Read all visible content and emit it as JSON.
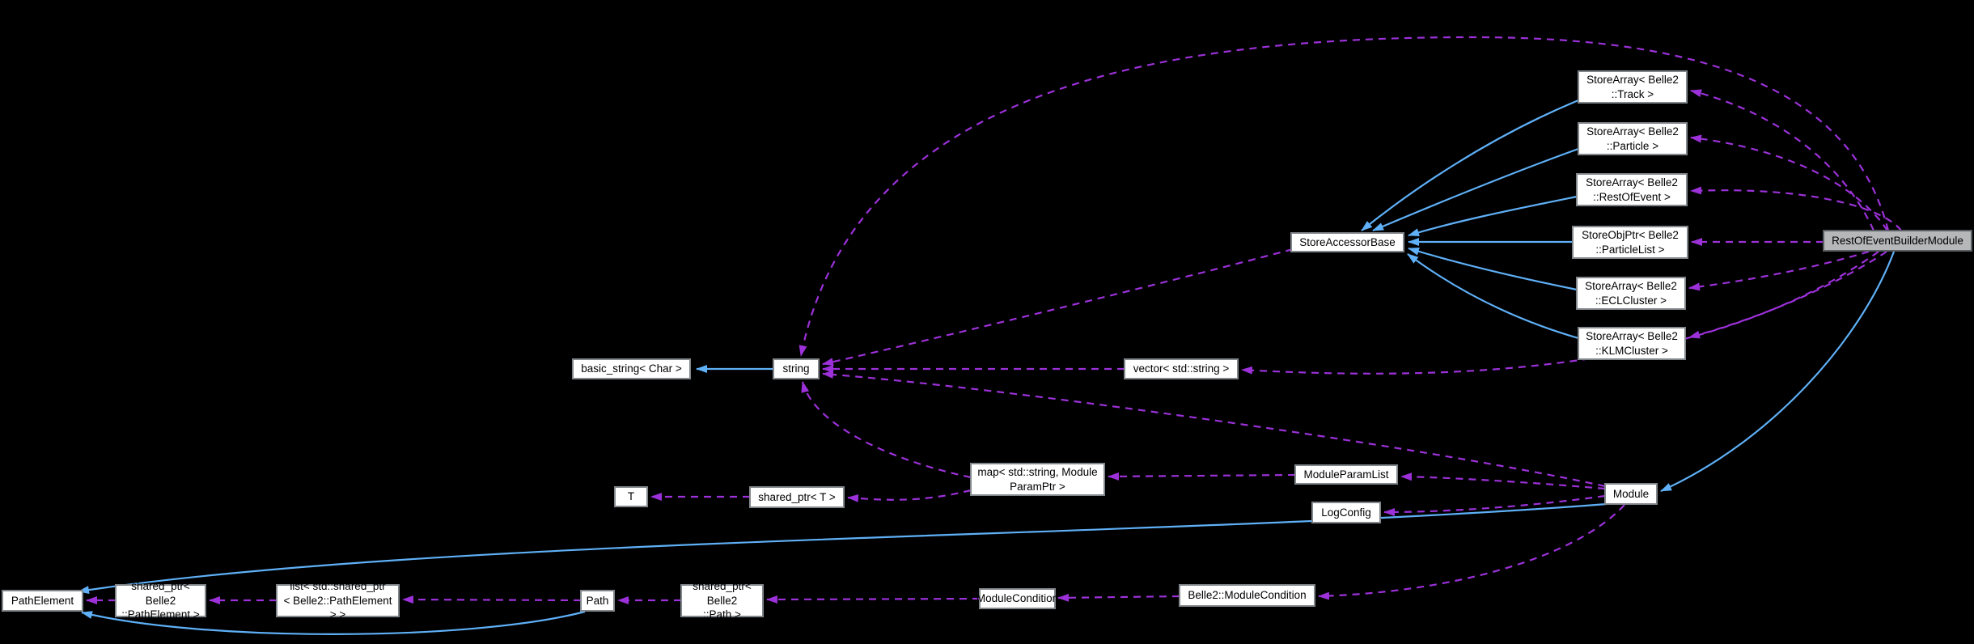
{
  "diagram": {
    "type": "doxygen-collaboration-graph",
    "background_color": "#000000",
    "colors": {
      "inheritance_edge": "#5fb0f7",
      "usage_edge": "#9c31d9",
      "node_fill": "#ffffff",
      "node_border": "#82878c",
      "current_node_fill": "#b5b7b8",
      "current_node_border": "#5a5f63",
      "label_color": "#000000"
    },
    "nodes": [
      {
        "id": "reob",
        "label": "RestOfEventBuilderModule",
        "current": true
      },
      {
        "id": "sa_track",
        "label": "StoreArray< Belle2\n::Track >",
        "current": false
      },
      {
        "id": "sa_particle",
        "label": "StoreArray< Belle2\n::Particle >",
        "current": false
      },
      {
        "id": "sa_roe",
        "label": "StoreArray< Belle2\n::RestOfEvent >",
        "current": false
      },
      {
        "id": "sop_particle_list",
        "label": "StoreObjPtr< Belle2\n::ParticleList >",
        "current": false
      },
      {
        "id": "sa_ecl",
        "label": "StoreArray< Belle2\n::ECLCluster >",
        "current": false
      },
      {
        "id": "sa_klm",
        "label": "StoreArray< Belle2\n::KLMCluster >",
        "current": false
      },
      {
        "id": "store_accessor",
        "label": "StoreAccessorBase",
        "current": false
      },
      {
        "id": "basic_string",
        "label": "basic_string< Char >",
        "current": false
      },
      {
        "id": "string",
        "label": "string",
        "current": false
      },
      {
        "id": "vec_string",
        "label": "vector< std::string >",
        "current": false
      },
      {
        "id": "t",
        "label": "T",
        "current": false
      },
      {
        "id": "sp_t",
        "label": "shared_ptr< T >",
        "current": false
      },
      {
        "id": "map",
        "label": "map< std::string, Module\nParamPtr >",
        "current": false
      },
      {
        "id": "mpl",
        "label": "ModuleParamList",
        "current": false
      },
      {
        "id": "log_config",
        "label": "LogConfig",
        "current": false
      },
      {
        "id": "module",
        "label": "Module",
        "current": false
      },
      {
        "id": "path_element",
        "label": "PathElement",
        "current": false
      },
      {
        "id": "sp_path_element",
        "label": "shared_ptr< Belle2\n::PathElement >",
        "current": false
      },
      {
        "id": "list_sp",
        "label": "list< std::shared_ptr\n< Belle2::PathElement > >",
        "current": false
      },
      {
        "id": "path",
        "label": "Path",
        "current": false
      },
      {
        "id": "sp_path",
        "label": "shared_ptr< Belle2\n::Path >",
        "current": false
      },
      {
        "id": "module_condition",
        "label": "ModuleCondition",
        "current": false
      },
      {
        "id": "vec_module_condition",
        "label": "vector< Belle2::ModuleCondition >",
        "current": false
      }
    ],
    "edges": [
      {
        "from": "string",
        "to": "basic_string",
        "relation": "inheritance"
      },
      {
        "from": "sa_track",
        "to": "store_accessor",
        "relation": "inheritance"
      },
      {
        "from": "sa_particle",
        "to": "store_accessor",
        "relation": "inheritance"
      },
      {
        "from": "sa_roe",
        "to": "store_accessor",
        "relation": "inheritance"
      },
      {
        "from": "sop_particle_list",
        "to": "store_accessor",
        "relation": "inheritance"
      },
      {
        "from": "sa_ecl",
        "to": "store_accessor",
        "relation": "inheritance"
      },
      {
        "from": "sa_klm",
        "to": "store_accessor",
        "relation": "inheritance"
      },
      {
        "from": "reob",
        "to": "module",
        "relation": "inheritance"
      },
      {
        "from": "module",
        "to": "path_element",
        "relation": "inheritance"
      },
      {
        "from": "path",
        "to": "path_element",
        "relation": "inheritance"
      },
      {
        "from": "reob",
        "to": "sa_track",
        "relation": "usage"
      },
      {
        "from": "reob",
        "to": "sa_particle",
        "relation": "usage"
      },
      {
        "from": "reob",
        "to": "sa_roe",
        "relation": "usage"
      },
      {
        "from": "reob",
        "to": "sop_particle_list",
        "relation": "usage"
      },
      {
        "from": "reob",
        "to": "sa_ecl",
        "relation": "usage"
      },
      {
        "from": "reob",
        "to": "sa_klm",
        "relation": "usage"
      },
      {
        "from": "reob",
        "to": "string",
        "relation": "usage"
      },
      {
        "from": "reob",
        "to": "vec_string",
        "relation": "usage"
      },
      {
        "from": "store_accessor",
        "to": "string",
        "relation": "usage"
      },
      {
        "from": "vec_string",
        "to": "string",
        "relation": "usage"
      },
      {
        "from": "module",
        "to": "string",
        "relation": "usage"
      },
      {
        "from": "map",
        "to": "string",
        "relation": "usage"
      },
      {
        "from": "map",
        "to": "sp_t",
        "relation": "usage"
      },
      {
        "from": "sp_t",
        "to": "t",
        "relation": "usage"
      },
      {
        "from": "mpl",
        "to": "map",
        "relation": "usage"
      },
      {
        "from": "module",
        "to": "mpl",
        "relation": "usage"
      },
      {
        "from": "module",
        "to": "log_config",
        "relation": "usage"
      },
      {
        "from": "module",
        "to": "vec_module_condition",
        "relation": "usage"
      },
      {
        "from": "vec_module_condition",
        "to": "module_condition",
        "relation": "usage"
      },
      {
        "from": "module_condition",
        "to": "sp_path",
        "relation": "usage"
      },
      {
        "from": "sp_path",
        "to": "path",
        "relation": "usage"
      },
      {
        "from": "path",
        "to": "list_sp",
        "relation": "usage"
      },
      {
        "from": "list_sp",
        "to": "sp_path_element",
        "relation": "usage"
      },
      {
        "from": "sp_path_element",
        "to": "path_element",
        "relation": "usage"
      }
    ]
  }
}
